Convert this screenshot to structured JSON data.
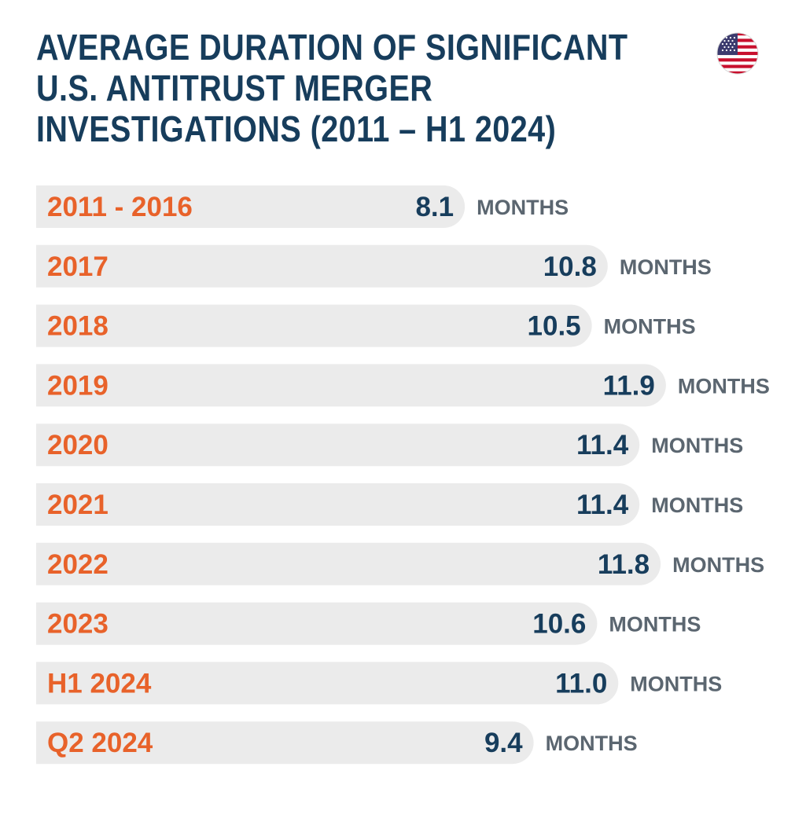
{
  "title_lines": [
    "AVERAGE DURATION OF SIGNIFICANT",
    "U.S. ANTITRUST MERGER",
    "INVESTIGATIONS (2011 – H1 2024)"
  ],
  "flag_icon": "us-flag-icon",
  "colors": {
    "title": "#173d5c",
    "category": "#e8622a",
    "value": "#173d5c",
    "unit": "#5b6670",
    "bar": "#ebebeb"
  },
  "chart_data": {
    "type": "bar",
    "orientation": "horizontal",
    "title": "AVERAGE DURATION OF SIGNIFICANT U.S. ANTITRUST MERGER INVESTIGATIONS (2011 – H1 2024)",
    "categories": [
      "2011 - 2016",
      "2017",
      "2018",
      "2019",
      "2020",
      "2021",
      "2022",
      "2023",
      "H1 2024",
      "Q2 2024"
    ],
    "values": [
      8.1,
      10.8,
      10.5,
      11.9,
      11.4,
      11.4,
      11.8,
      10.6,
      11.0,
      9.4
    ],
    "value_labels": [
      "8.1",
      "10.8",
      "10.5",
      "11.9",
      "11.4",
      "11.4",
      "11.8",
      "10.6",
      "11.0",
      "9.4"
    ],
    "unit_label": "MONTHS",
    "xlim": [
      0,
      11.9
    ],
    "grid": false,
    "legend": "none"
  }
}
